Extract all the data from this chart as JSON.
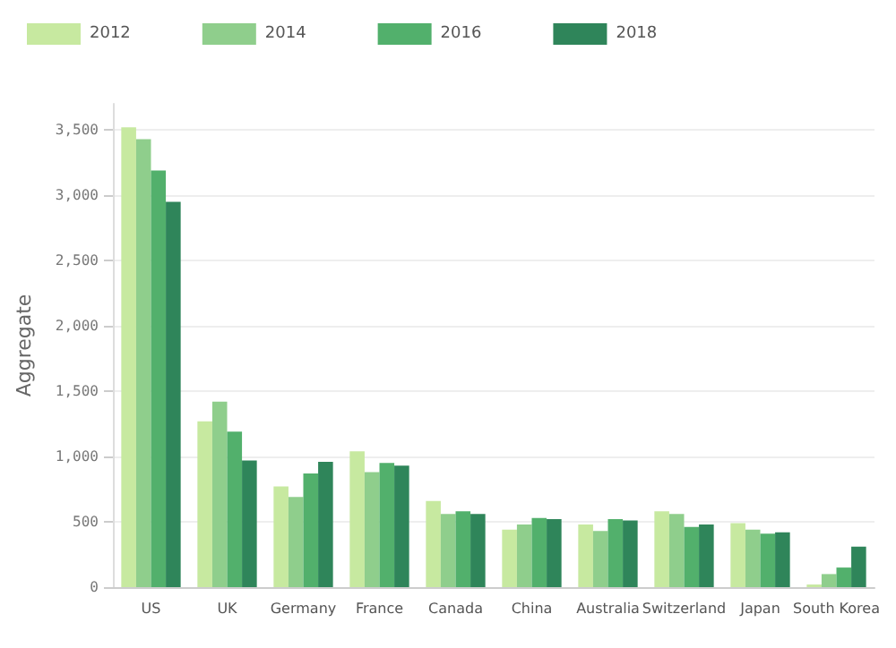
{
  "chart_data": {
    "type": "bar",
    "ylabel": "Aggregate",
    "categories": [
      "US",
      "UK",
      "Germany",
      "France",
      "Canada",
      "China",
      "Australia",
      "Switzerland",
      "Japan",
      "South Korea"
    ],
    "series": [
      {
        "name": "2012",
        "color": "#c7e9a0",
        "values": [
          3520,
          1270,
          770,
          1040,
          660,
          440,
          480,
          580,
          490,
          20
        ]
      },
      {
        "name": "2014",
        "color": "#8fce8c",
        "values": [
          3430,
          1420,
          690,
          880,
          560,
          480,
          430,
          560,
          440,
          100
        ]
      },
      {
        "name": "2016",
        "color": "#52b06c",
        "values": [
          3190,
          1190,
          870,
          950,
          580,
          530,
          520,
          460,
          410,
          150
        ]
      },
      {
        "name": "2018",
        "color": "#2f855a",
        "values": [
          2950,
          970,
          960,
          930,
          560,
          520,
          510,
          480,
          420,
          310
        ]
      }
    ],
    "ylim": [
      0,
      3700
    ],
    "yticks": [
      0,
      500,
      {
        "value": 1000,
        "label": "1,000"
      },
      {
        "value": 1500,
        "label": "1,500"
      },
      {
        "value": 2000,
        "label": "2,000"
      },
      {
        "value": 2500,
        "label": "2,500"
      },
      {
        "value": 3000,
        "label": "3,000"
      },
      {
        "value": 3500,
        "label": "3,500"
      }
    ],
    "grid": "y",
    "legend": "top left"
  }
}
